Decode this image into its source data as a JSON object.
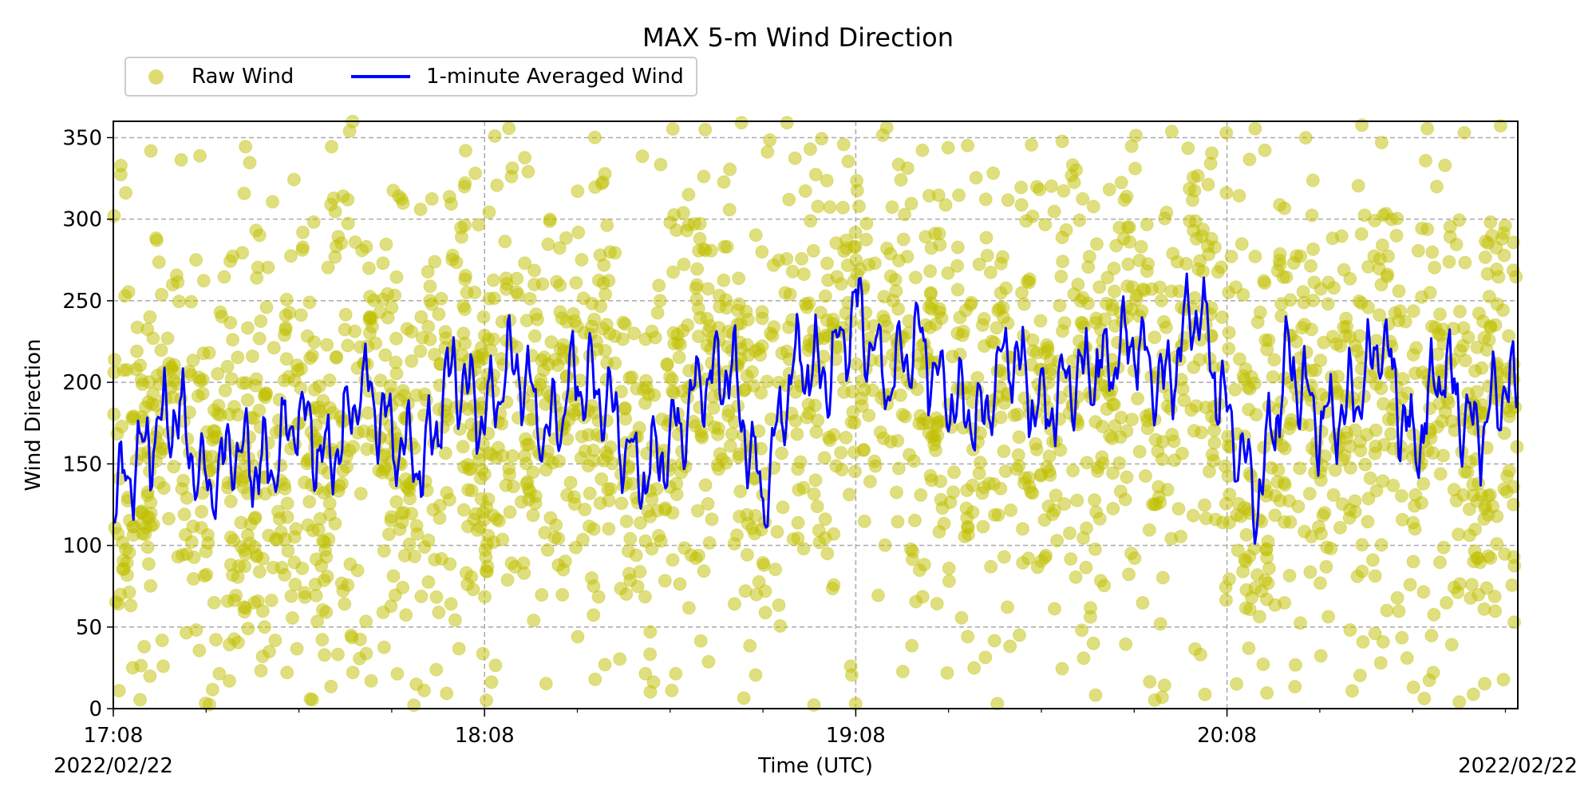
{
  "chart_data": {
    "type": "line",
    "title": "MAX 5-m Wind Direction",
    "xlabel": "Time (UTC)",
    "ylabel": "Wind Direction",
    "xlim": [
      "17:08",
      "20:55"
    ],
    "ylim": [
      0,
      360
    ],
    "x_ticks": [
      "17:08",
      "18:08",
      "19:08",
      "20:08"
    ],
    "x_dates": {
      "left": "2022/02/22",
      "right": "2022/02/22"
    },
    "y_ticks": [
      0,
      50,
      100,
      150,
      200,
      250,
      300,
      350
    ],
    "grid": true,
    "legend_placement": "top-left",
    "series": [
      {
        "name": "Raw Wind",
        "style": "scatter",
        "color": "#bfbf00",
        "values": "dense scatter of raw wind directions, roughly centered near 180-200 with spread across 0-360"
      },
      {
        "name": "1-minute Averaged Wind",
        "style": "line",
        "color": "#0000ff",
        "x": [
          "17:08",
          "17:13",
          "17:18",
          "17:23",
          "17:28",
          "17:33",
          "17:38",
          "17:43",
          "17:48",
          "17:53",
          "17:58",
          "18:03",
          "18:08",
          "18:13",
          "18:18",
          "18:23",
          "18:28",
          "18:33",
          "18:38",
          "18:43",
          "18:48",
          "18:53",
          "18:58",
          "19:03",
          "19:08",
          "19:13",
          "19:18",
          "19:23",
          "19:28",
          "19:33",
          "19:38",
          "19:43",
          "19:48",
          "19:53",
          "19:58",
          "20:03",
          "20:08",
          "20:13",
          "20:18",
          "20:23",
          "20:28",
          "20:33",
          "20:38",
          "20:43",
          "20:48",
          "20:53",
          "20:55"
        ],
        "values": [
          130,
          160,
          185,
          135,
          160,
          145,
          185,
          150,
          200,
          165,
          150,
          210,
          180,
          215,
          165,
          205,
          190,
          140,
          165,
          200,
          210,
          125,
          215,
          205,
          245,
          200,
          225,
          195,
          175,
          220,
          180,
          205,
          210,
          225,
          195,
          250,
          180,
          130,
          215,
          175,
          185,
          225,
          160,
          210,
          165,
          200,
          195
        ]
      }
    ]
  }
}
